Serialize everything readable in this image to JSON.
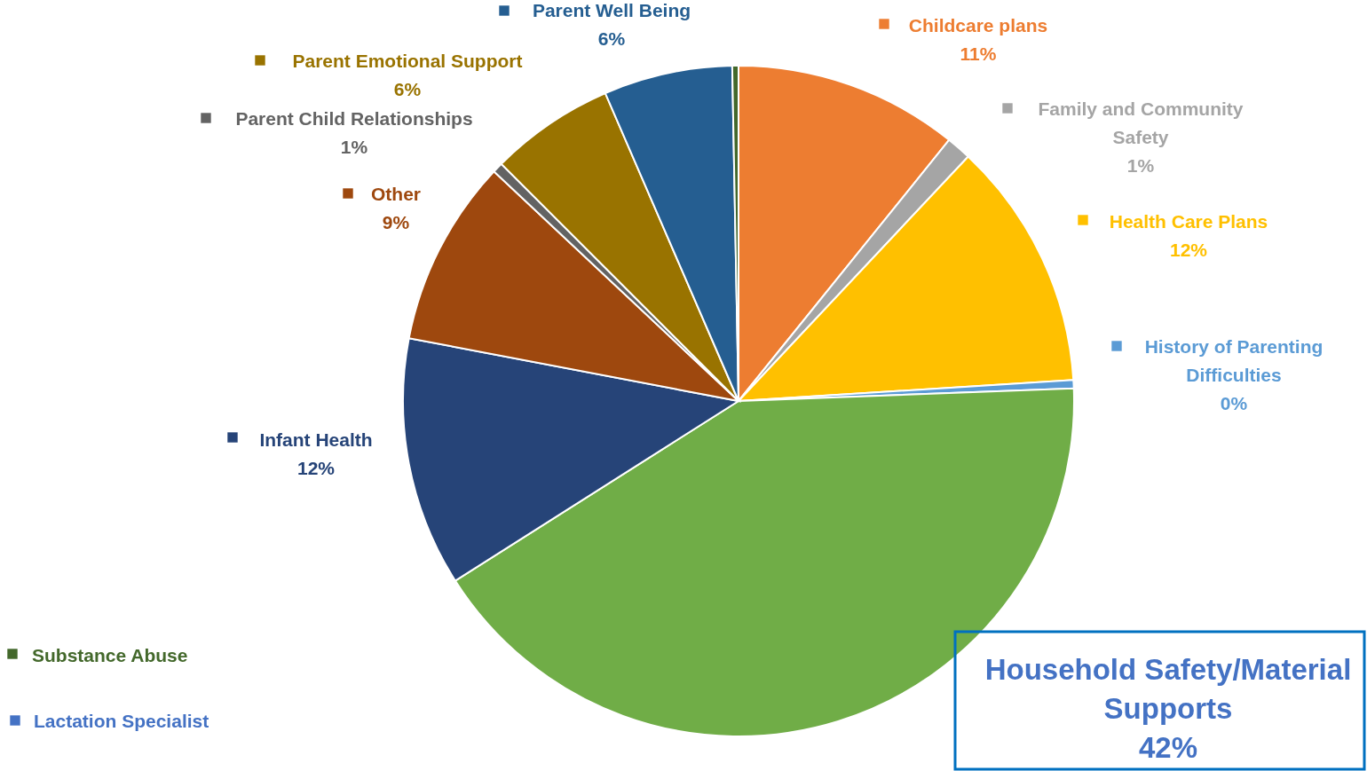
{
  "chart_data": {
    "type": "pie",
    "categories": [
      "Childcare plans",
      "Family and Community Safety",
      "Health Care Plans",
      "History of Parenting Difficulties",
      "Household Safety/Material Supports",
      "Infant Health",
      "Lactation Specialist",
      "Other",
      "Parent Child Relationships",
      "Parent Emotional Support",
      "Parent Well Being",
      "Substance Abuse"
    ],
    "values": [
      10.8,
      1.2,
      12,
      0.4,
      41.6,
      12,
      0,
      9,
      0.5,
      6,
      6.2,
      0.3
    ],
    "colors": [
      "#ed7d31",
      "#a5a5a5",
      "#ffc000",
      "#5b9bd5",
      "#70ad47",
      "#264478",
      "#4472c4",
      "#9e480e",
      "#636363",
      "#997300",
      "#255e91",
      "#43682b"
    ],
    "value_labels": [
      "11%",
      "1%",
      "12%",
      "0%",
      "42%",
      "12%",
      null,
      "9%",
      "1%",
      "6%",
      "6%",
      null
    ],
    "legend": true
  }
}
